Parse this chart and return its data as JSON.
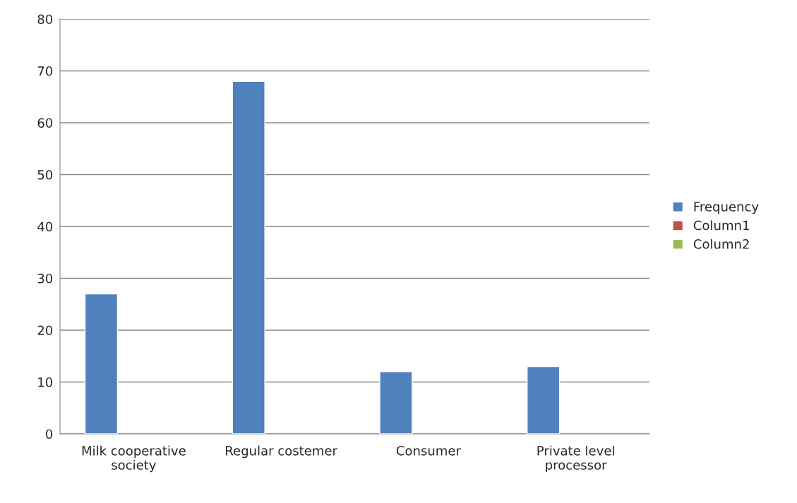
{
  "chart_data": {
    "type": "bar",
    "categories": [
      "Milk cooperative\nsociety",
      "Regular costemer",
      "Consumer",
      "Private level\nprocessor"
    ],
    "series": [
      {
        "name": "Frequency",
        "color": "#4f81bd",
        "values": [
          27,
          68,
          12,
          13
        ]
      },
      {
        "name": "Column1",
        "color": "#c0504d",
        "values": [
          null,
          null,
          null,
          null
        ]
      },
      {
        "name": "Column2",
        "color": "#9bbb59",
        "values": [
          null,
          null,
          null,
          null
        ]
      }
    ],
    "ylim": [
      0,
      80
    ],
    "yticks": [
      0,
      10,
      20,
      30,
      40,
      50,
      60,
      70,
      80
    ],
    "grid": "y",
    "legend": "right"
  }
}
